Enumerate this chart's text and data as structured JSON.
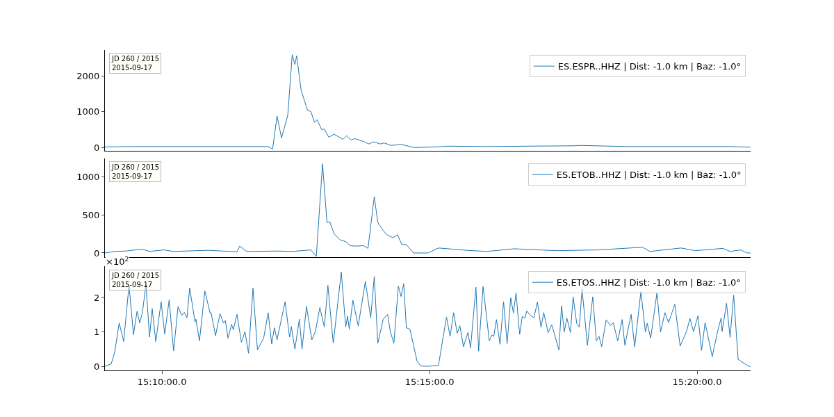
{
  "chart_data": [
    {
      "type": "line",
      "x": [
        "2015-09-17T15:08:56",
        "2015-09-17T15:09:35",
        "2015-09-17T15:10:13",
        "2015-09-17T15:10:52",
        "2015-09-17T15:11:31",
        "2015-09-17T15:11:59",
        "2015-09-17T15:12:04",
        "2015-09-17T15:12:09",
        "2015-09-17T15:12:14",
        "2015-09-17T15:12:21",
        "2015-09-17T15:12:26",
        "2015-09-17T15:12:29",
        "2015-09-17T15:12:31",
        "2015-09-17T15:12:36",
        "2015-09-17T15:12:43",
        "2015-09-17T15:12:47",
        "2015-09-17T15:12:51",
        "2015-09-17T15:12:54",
        "2015-09-17T15:12:59",
        "2015-09-17T15:13:02",
        "2015-09-17T15:13:07",
        "2015-09-17T15:13:13",
        "2015-09-17T15:13:23",
        "2015-09-17T15:13:27",
        "2015-09-17T15:13:32",
        "2015-09-17T15:13:36",
        "2015-09-17T15:13:46",
        "2015-09-17T15:13:52",
        "2015-09-17T15:13:57",
        "2015-09-17T15:14:05",
        "2015-09-17T15:14:09",
        "2015-09-17T15:14:17",
        "2015-09-17T15:14:28",
        "2015-09-17T15:14:43",
        "2015-09-17T15:15:09",
        "2015-09-17T15:15:21",
        "2015-09-17T15:16:04",
        "2015-09-17T15:16:51",
        "2015-09-17T15:17:41",
        "2015-09-17T15:17:49",
        "2015-09-17T15:18:40",
        "2015-09-17T15:19:58",
        "2015-09-17T15:20:37",
        "2015-09-17T15:21:00"
      ],
      "series": [
        {
          "name": "ES.ESPR..HHZ | Dist: -1.0 km | Baz: -1.0°",
          "color": "#1f77b4",
          "values": [
            20,
            30,
            30,
            30,
            30,
            30,
            -40,
            880,
            270,
            900,
            2590,
            2320,
            2560,
            1600,
            1050,
            1000,
            700,
            780,
            500,
            520,
            290,
            370,
            230,
            330,
            210,
            250,
            170,
            100,
            160,
            100,
            130,
            60,
            90,
            0,
            20,
            40,
            30,
            40,
            50,
            60,
            30,
            30,
            30,
            10
          ]
        }
      ],
      "xlim": [
        "2015-09-17T15:08:56",
        "2015-09-17T15:21:00"
      ],
      "ylim": [
        -90,
        2720
      ],
      "yticks": [
        0,
        1000,
        2000
      ],
      "tick_labels": "y",
      "legend": "top right",
      "annotations": [
        "JD 260 / 2015\n2015-09-17"
      ]
    },
    {
      "type": "line",
      "x": [
        "2015-09-17T15:08:56",
        "2015-09-17T15:09:07",
        "2015-09-17T15:09:19",
        "2015-09-17T15:09:38",
        "2015-09-17T15:09:46",
        "2015-09-17T15:10:02",
        "2015-09-17T15:10:13",
        "2015-09-17T15:10:52",
        "2015-09-17T15:11:08",
        "2015-09-17T15:11:24",
        "2015-09-17T15:11:27",
        "2015-09-17T15:11:35",
        "2015-09-17T15:12:10",
        "2015-09-17T15:12:26",
        "2015-09-17T15:12:47",
        "2015-09-17T15:12:53",
        "2015-09-17T15:13:00",
        "2015-09-17T15:13:05",
        "2015-09-17T15:13:08",
        "2015-09-17T15:13:13",
        "2015-09-17T15:13:20",
        "2015-09-17T15:13:26",
        "2015-09-17T15:13:31",
        "2015-09-17T15:13:38",
        "2015-09-17T15:13:46",
        "2015-09-17T15:13:51",
        "2015-09-17T15:13:58",
        "2015-09-17T15:14:02",
        "2015-09-17T15:14:07",
        "2015-09-17T15:14:12",
        "2015-09-17T15:14:19",
        "2015-09-17T15:14:24",
        "2015-09-17T15:14:29",
        "2015-09-17T15:14:34",
        "2015-09-17T15:14:42",
        "2015-09-17T15:14:58",
        "2015-09-17T15:15:10",
        "2015-09-17T15:15:21",
        "2015-09-17T15:15:41",
        "2015-09-17T15:16:04",
        "2015-09-17T15:16:35",
        "2015-09-17T15:17:22",
        "2015-09-17T15:18:09",
        "2015-09-17T15:18:59",
        "2015-09-17T15:19:07",
        "2015-09-17T15:19:42",
        "2015-09-17T15:19:58",
        "2015-09-17T15:20:29",
        "2015-09-17T15:20:37",
        "2015-09-17T15:20:49",
        "2015-09-17T15:20:56",
        "2015-09-17T15:21:00"
      ],
      "series": [
        {
          "name": "ES.ETOB..HHZ | Dist: -1.0 km | Baz: -1.0°",
          "color": "#1f77b4",
          "values": [
            0,
            20,
            25,
            50,
            20,
            40,
            20,
            35,
            25,
            15,
            90,
            20,
            25,
            20,
            40,
            -45,
            1170,
            400,
            410,
            250,
            170,
            150,
            95,
            90,
            95,
            60,
            740,
            400,
            310,
            240,
            200,
            240,
            110,
            110,
            0,
            0,
            65,
            55,
            35,
            20,
            55,
            30,
            40,
            75,
            20,
            65,
            30,
            60,
            20,
            40,
            0,
            0
          ]
        }
      ],
      "xlim": [
        "2015-09-17T15:08:56",
        "2015-09-17T15:21:00"
      ],
      "ylim": [
        -55,
        1240
      ],
      "yticks": [
        0,
        500,
        1000
      ],
      "tick_labels": "y",
      "legend": "top right",
      "annotations": [
        "JD 260 / 2015\n2015-09-17"
      ]
    },
    {
      "type": "line",
      "x": [
        "2015-09-17T15:08:56",
        "2015-09-17T15:09:03",
        "2015-09-17T15:09:07",
        "2015-09-17T15:09:12",
        "2015-09-17T15:09:17",
        "2015-09-17T15:09:23",
        "2015-09-17T15:09:28",
        "2015-09-17T15:09:32",
        "2015-09-17T15:09:35",
        "2015-09-17T15:09:38",
        "2015-09-17T15:09:42",
        "2015-09-17T15:09:46",
        "2015-09-17T15:09:49",
        "2015-09-17T15:09:53",
        "2015-09-17T15:09:59",
        "2015-09-17T15:10:03",
        "2015-09-17T15:10:08",
        "2015-09-17T15:10:13",
        "2015-09-17T15:10:18",
        "2015-09-17T15:10:22",
        "2015-09-17T15:10:25",
        "2015-09-17T15:10:28",
        "2015-09-17T15:10:31",
        "2015-09-17T15:10:37",
        "2015-09-17T15:10:38",
        "2015-09-17T15:10:42",
        "2015-09-17T15:10:48",
        "2015-09-17T15:10:54",
        "2015-09-17T15:10:55",
        "2015-09-17T15:11:00",
        "2015-09-17T15:11:05",
        "2015-09-17T15:11:09",
        "2015-09-17T15:11:11",
        "2015-09-17T15:11:14",
        "2015-09-17T15:11:18",
        "2015-09-17T15:11:20",
        "2015-09-17T15:11:24",
        "2015-09-17T15:11:29",
        "2015-09-17T15:11:33",
        "2015-09-17T15:11:37",
        "2015-09-17T15:11:42",
        "2015-09-17T15:11:47",
        "2015-09-17T15:11:54",
        "2015-09-17T15:11:59",
        "2015-09-17T15:12:03",
        "2015-09-17T15:12:06",
        "2015-09-17T15:12:09",
        "2015-09-17T15:12:18",
        "2015-09-17T15:12:23",
        "2015-09-17T15:12:25",
        "2015-09-17T15:12:29",
        "2015-09-17T15:12:34",
        "2015-09-17T15:12:37",
        "2015-09-17T15:12:42",
        "2015-09-17T15:12:48",
        "2015-09-17T15:12:52",
        "2015-09-17T15:12:57",
        "2015-09-17T15:13:02",
        "2015-09-17T15:13:06",
        "2015-09-17T15:13:12",
        "2015-09-17T15:13:21",
        "2015-09-17T15:13:26",
        "2015-09-17T15:13:28",
        "2015-09-17T15:13:30",
        "2015-09-17T15:13:34",
        "2015-09-17T15:13:40",
        "2015-09-17T15:13:48",
        "2015-09-17T15:13:54",
        "2015-09-17T15:13:58",
        "2015-09-17T15:14:02",
        "2015-09-17T15:14:08",
        "2015-09-17T15:14:13",
        "2015-09-17T15:14:16",
        "2015-09-17T15:14:20",
        "2015-09-17T15:14:25",
        "2015-09-17T15:14:28",
        "2015-09-17T15:14:31",
        "2015-09-17T15:14:34",
        "2015-09-17T15:14:38",
        "2015-09-17T15:14:46",
        "2015-09-17T15:14:50",
        "2015-09-17T15:14:58",
        "2015-09-17T15:15:10",
        "2015-09-17T15:15:19",
        "2015-09-17T15:15:23",
        "2015-09-17T15:15:27",
        "2015-09-17T15:15:31",
        "2015-09-17T15:15:34",
        "2015-09-17T15:15:38",
        "2015-09-17T15:15:43",
        "2015-09-17T15:15:46",
        "2015-09-17T15:15:52",
        "2015-09-17T15:15:55",
        "2015-09-17T15:16:00",
        "2015-09-17T15:16:07",
        "2015-09-17T15:16:10",
        "2015-09-17T15:16:12",
        "2015-09-17T15:16:15",
        "2015-09-17T15:16:19",
        "2015-09-17T15:16:23",
        "2015-09-17T15:16:27",
        "2015-09-17T15:16:31",
        "2015-09-17T15:16:34",
        "2015-09-17T15:16:37",
        "2015-09-17T15:16:41",
        "2015-09-17T15:16:44",
        "2015-09-17T15:16:47",
        "2015-09-17T15:16:49",
        "2015-09-17T15:16:53",
        "2015-09-17T15:16:57",
        "2015-09-17T15:17:01",
        "2015-09-17T15:17:05",
        "2015-09-17T15:17:08",
        "2015-09-17T15:17:13",
        "2015-09-17T15:17:17",
        "2015-09-17T15:17:20",
        "2015-09-17T15:17:25",
        "2015-09-17T15:17:28",
        "2015-09-17T15:17:31",
        "2015-09-17T15:17:34",
        "2015-09-17T15:17:38",
        "2015-09-17T15:17:41",
        "2015-09-17T15:17:45",
        "2015-09-17T15:17:48",
        "2015-09-17T15:17:51",
        "2015-09-17T15:17:57",
        "2015-09-17T15:18:03",
        "2015-09-17T15:18:07",
        "2015-09-17T15:18:10",
        "2015-09-17T15:18:13",
        "2015-09-17T15:18:18",
        "2015-09-17T15:18:23",
        "2015-09-17T15:18:26",
        "2015-09-17T15:18:31",
        "2015-09-17T15:18:36",
        "2015-09-17T15:18:39",
        "2015-09-17T15:18:46",
        "2015-09-17T15:18:50",
        "2015-09-17T15:18:57",
        "2015-09-17T15:19:02",
        "2015-09-17T15:19:04",
        "2015-09-17T15:19:08",
        "2015-09-17T15:19:15",
        "2015-09-17T15:19:19",
        "2015-09-17T15:19:24",
        "2015-09-17T15:19:28",
        "2015-09-17T15:19:35",
        "2015-09-17T15:19:41",
        "2015-09-17T15:19:48",
        "2015-09-17T15:19:52",
        "2015-09-17T15:19:56",
        "2015-09-17T15:20:01",
        "2015-09-17T15:20:05",
        "2015-09-17T15:20:09",
        "2015-09-17T15:20:17",
        "2015-09-17T15:20:23",
        "2015-09-17T15:20:27",
        "2015-09-17T15:20:28",
        "2015-09-17T15:20:33",
        "2015-09-17T15:20:37",
        "2015-09-17T15:20:41",
        "2015-09-17T15:20:46",
        "2015-09-17T15:20:58",
        "2015-09-17T15:21:00"
      ],
      "series": [
        {
          "name": "ES.ETOS..HHZ | Dist: -1.0 km | Baz: -1.0°",
          "color": "#1f77b4",
          "values": [
            0,
            0.07,
            0.42,
            1.26,
            0.72,
            2.36,
            0.92,
            1.6,
            1.26,
            1.56,
            2.38,
            0.85,
            1.68,
            0.72,
            1.88,
            0.94,
            1.93,
            0.45,
            1.74,
            1.48,
            1.57,
            1.41,
            2.28,
            1.29,
            1.37,
            0.74,
            2.19,
            1.54,
            1.56,
            0.89,
            1.53,
            1.26,
            1.33,
            0.82,
            1.22,
            1.06,
            1.51,
            0.7,
            1.01,
            0.38,
            2.27,
            0.48,
            0.82,
            1.56,
            0.65,
            1.12,
            0.77,
            1.88,
            0.85,
            1.16,
            0.5,
            1.37,
            0.5,
            1.74,
            0.77,
            1.01,
            1.71,
            1.14,
            2.35,
            0.67,
            2.74,
            1.14,
            1.46,
            1.08,
            1.92,
            1.17,
            2.47,
            1.41,
            2.61,
            0.67,
            1.37,
            1.51,
            1.01,
            0.67,
            2.33,
            2.03,
            2.4,
            1.12,
            1.08,
            0.15,
            0.01,
            0,
            0.03,
            1.43,
            0.87,
            1.56,
            0.96,
            1.18,
            0.57,
            0.98,
            0.54,
            2.3,
            0.44,
            2.32,
            0.74,
            0.91,
            0.87,
            1.36,
            0.64,
            1.88,
            0.66,
            1.99,
            1.55,
            2.13,
            0.93,
            1.45,
            1.4,
            1.61,
            1.48,
            1.41,
            1.87,
            1.13,
            1.56,
            0.98,
            1.21,
            0.94,
            0.48,
            1.76,
            1,
            1.4,
            0.98,
            2.02,
            1.25,
            1.14,
            2.25,
            0.61,
            2.02,
            0.74,
            0.87,
            0.57,
            1.35,
            1.18,
            1.27,
            0.74,
            1.36,
            0.61,
            1.51,
            0.57,
            2.17,
            1,
            1.25,
            0.82,
            2.14,
            1,
            1.56,
            1.27,
            1.8,
            0.59,
            1,
            1.39,
            1.01,
            1.47,
            0.46,
            1.27,
            0.28,
            1.02,
            1.41,
            1.01,
            1.83,
            0.84,
            2.07,
            0.2,
            0,
            0
          ]
        }
      ],
      "xlim": [
        "2015-09-17T15:08:56",
        "2015-09-17T15:21:00"
      ],
      "xticks": [
        {
          "value": "2015-09-17T15:10:00",
          "label": "15:10:00.0"
        },
        {
          "value": "2015-09-17T15:15:00",
          "label": "15:15:00.0"
        },
        {
          "value": "2015-09-17T15:20:00",
          "label": "15:20:00.0"
        }
      ],
      "ylim": [
        -0.12,
        2.91
      ],
      "yticks": [
        0,
        1,
        2
      ],
      "legend": "top right",
      "annotations": [
        "JD 260 / 2015\n2015-09-17",
        "×10$^{2}$"
      ]
    }
  ]
}
